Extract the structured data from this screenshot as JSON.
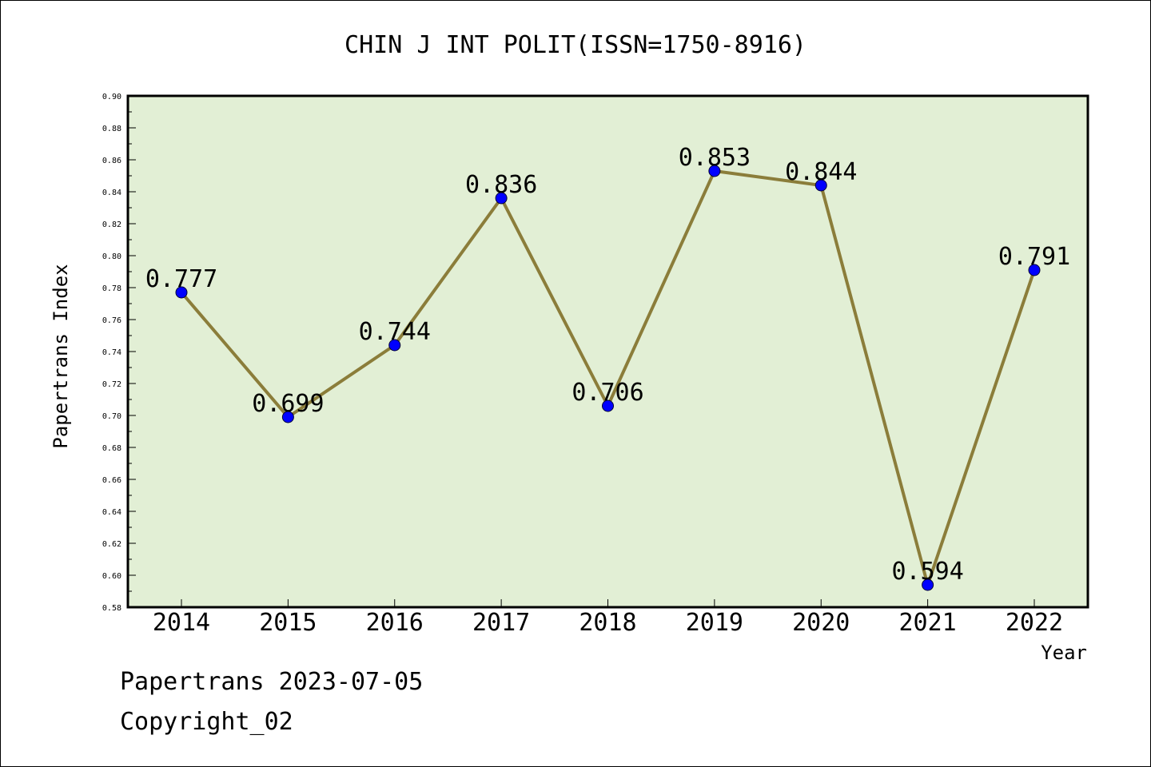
{
  "chart_data": {
    "type": "line",
    "title": "CHIN J INT POLIT(ISSN=1750-8916)",
    "xlabel": "Year",
    "ylabel": "Papertrans Index",
    "categories": [
      "2014",
      "2015",
      "2016",
      "2017",
      "2018",
      "2019",
      "2020",
      "2021",
      "2022"
    ],
    "series": [
      {
        "values": [
          0.777,
          0.699,
          0.744,
          0.836,
          0.706,
          0.853,
          0.844,
          0.594,
          0.791
        ],
        "labels": [
          "0.777",
          "0.699",
          "0.744",
          "0.836",
          "0.706",
          "0.853",
          "0.844",
          "0.594",
          "0.791"
        ]
      }
    ],
    "ylim": [
      0.58,
      0.9
    ],
    "yticks": [
      "0.58",
      "0.60",
      "0.62",
      "0.64",
      "0.66",
      "0.68",
      "0.70",
      "0.72",
      "0.74",
      "0.76",
      "0.78",
      "0.80",
      "0.82",
      "0.84",
      "0.86",
      "0.88",
      "0.90"
    ],
    "grid": false,
    "colors": {
      "plot_background": "#e2efd5",
      "line": "#8b7d3a",
      "marker": "#0000ff"
    }
  },
  "footer": {
    "line1": "Papertrans 2023-07-05",
    "line2": "Copyright_02"
  }
}
